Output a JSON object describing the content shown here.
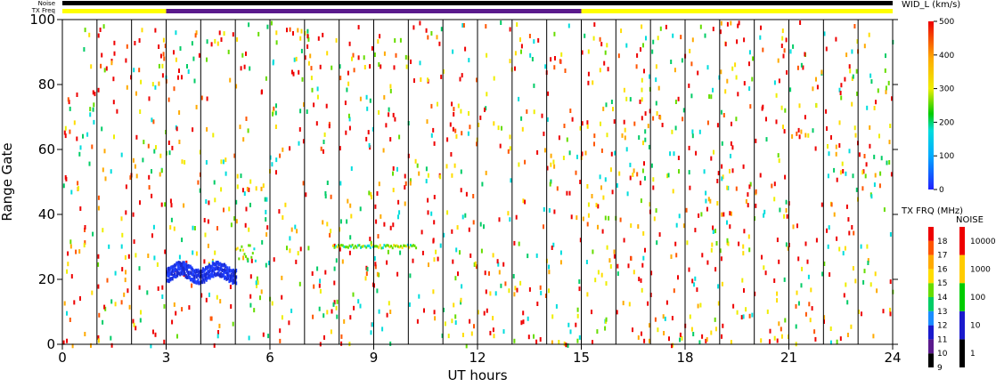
{
  "chart_data": {
    "type": "heatmap",
    "xlabel": "UT hours",
    "ylabel": "Range Gate",
    "xlim": [
      0,
      24
    ],
    "ylim": [
      0,
      100
    ],
    "x_ticks": [
      "0",
      "3",
      "6",
      "9",
      "12",
      "15",
      "18",
      "21",
      "24"
    ],
    "y_ticks": [
      "0",
      "20",
      "40",
      "60",
      "80",
      "100"
    ],
    "grid": "vertical lines every 1 hour",
    "top_bars": {
      "noise_label": "Noise",
      "txfreq_label": "TX Freq",
      "noise_color": "#000000",
      "txfreq_segments": [
        {
          "start": 0,
          "end": 3,
          "color": "#ffff00"
        },
        {
          "start": 3,
          "end": 15,
          "color": "#5a1a8c"
        },
        {
          "start": 15,
          "end": 24,
          "color": "#ffff00"
        }
      ]
    },
    "wid_colorbar": {
      "title": "WID_L (km/s)",
      "ticks": [
        "0",
        "100",
        "200",
        "300",
        "400",
        "500"
      ],
      "range": [
        0,
        500
      ]
    },
    "txfrq_colorbar": {
      "title": "TX FRQ (MHz)",
      "ticks": [
        "9",
        "10",
        "11",
        "12",
        "13",
        "14",
        "15",
        "16",
        "17",
        "18"
      ],
      "colors": [
        "#000000",
        "#5a1a8c",
        "#1a1acc",
        "#1a8cff",
        "#00cc66",
        "#66dd00",
        "#ffdd00",
        "#ffaa00",
        "#ff5500",
        "#ee0000"
      ]
    },
    "noise_colorbar": {
      "title": "NOISE",
      "ticks": [
        "1",
        "10",
        "100",
        "1000",
        "10000"
      ],
      "colors": [
        "#000000",
        "#1a1acc",
        "#00cc00",
        "#ffcc00",
        "#ee0000"
      ]
    },
    "echo_band": {
      "description_visible": false,
      "x_start": 3.0,
      "x_end": 5.0,
      "gate_low": 20,
      "gate_high": 27
    },
    "bands": [
      {
        "x_start": 5.0,
        "x_end": 5.6,
        "gate_low": 26,
        "gate_high": 31
      },
      {
        "x_start": 7.8,
        "x_end": 10.2,
        "gate_low": 30,
        "gate_high": 31
      }
    ]
  }
}
